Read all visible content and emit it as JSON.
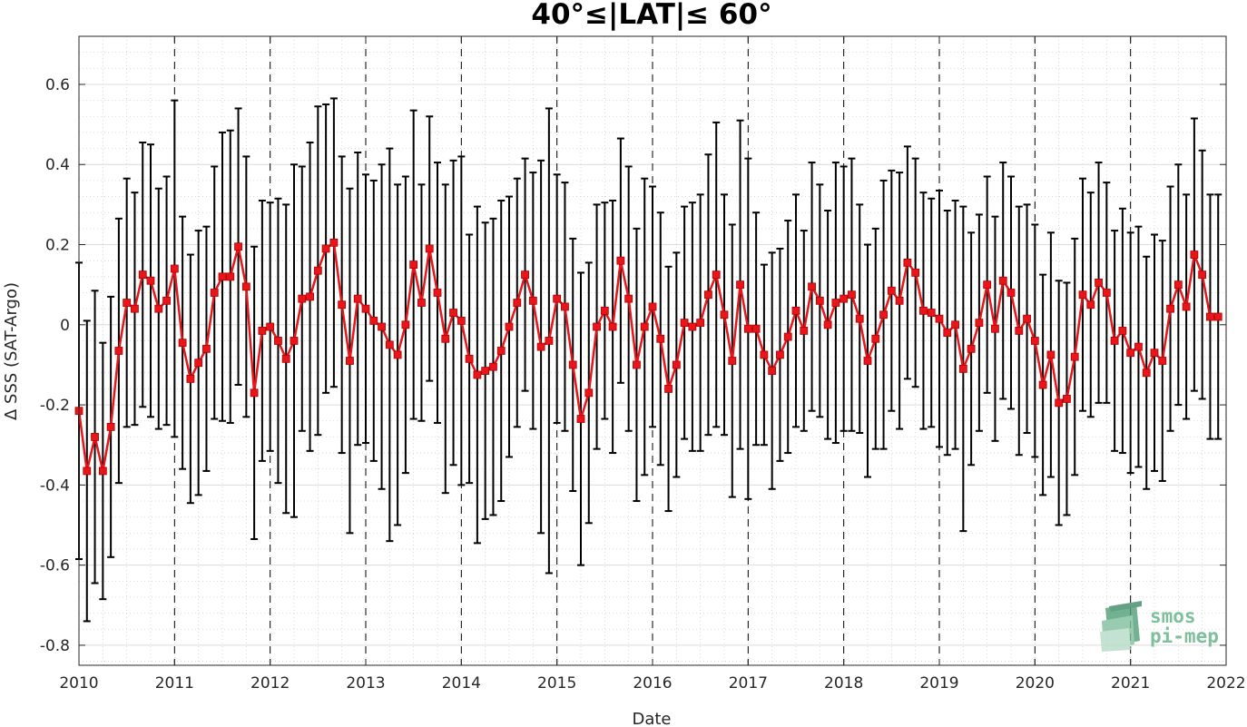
{
  "chart_data": {
    "type": "line",
    "title": "40°≤|LAT|≤ 60°",
    "xlabel": "Date",
    "ylabel": "Δ SSS (SAT-Argo)",
    "xlim": [
      2010,
      2022
    ],
    "ylim": [
      -0.85,
      0.72
    ],
    "x_ticks": [
      "2010",
      "2011",
      "2012",
      "2013",
      "2014",
      "2015",
      "2016",
      "2017",
      "2018",
      "2019",
      "2020",
      "2021",
      "2022"
    ],
    "y_ticks": [
      "-0.8",
      "-0.6",
      "-0.4",
      "-0.2",
      "0",
      "0.2",
      "0.4",
      "0.6"
    ],
    "grid": true,
    "year_boundary_lines": "dashed",
    "series": [
      {
        "x_start": "2010-01",
        "step": "1 month",
        "color": "#e8151b",
        "marker": "square",
        "errorbar_color": "#000000",
        "values": [
          -0.215,
          -0.365,
          -0.28,
          -0.365,
          -0.255,
          -0.065,
          0.055,
          0.04,
          0.125,
          0.11,
          0.04,
          0.06,
          0.14,
          -0.045,
          -0.135,
          -0.095,
          -0.06,
          0.08,
          0.12,
          0.12,
          0.195,
          0.095,
          -0.17,
          -0.015,
          -0.005,
          -0.04,
          -0.085,
          -0.04,
          0.065,
          0.07,
          0.135,
          0.19,
          0.205,
          0.05,
          -0.09,
          0.065,
          0.04,
          0.01,
          -0.005,
          -0.05,
          -0.075,
          0.0,
          0.15,
          0.055,
          0.19,
          0.08,
          -0.035,
          0.03,
          0.01,
          -0.085,
          -0.125,
          -0.115,
          -0.105,
          -0.065,
          -0.005,
          0.055,
          0.125,
          0.06,
          -0.055,
          -0.04,
          0.065,
          0.045,
          -0.1,
          -0.235,
          -0.17,
          -0.005,
          0.035,
          -0.005,
          0.16,
          0.065,
          -0.1,
          -0.005,
          0.045,
          -0.035,
          -0.16,
          -0.1,
          0.005,
          -0.005,
          0.005,
          0.075,
          0.125,
          0.025,
          -0.09,
          0.1,
          -0.01,
          -0.01,
          -0.075,
          -0.115,
          -0.075,
          -0.03,
          0.035,
          -0.015,
          0.095,
          0.06,
          0.0,
          0.055,
          0.065,
          0.075,
          0.015,
          -0.09,
          -0.035,
          0.025,
          0.085,
          0.06,
          0.155,
          0.13,
          0.035,
          0.03,
          0.015,
          -0.02,
          0.0,
          -0.11,
          -0.06,
          0.005,
          0.1,
          -0.01,
          0.11,
          0.08,
          -0.015,
          0.015,
          -0.04,
          -0.15,
          -0.075,
          -0.195,
          -0.185,
          -0.08,
          0.075,
          0.05,
          0.105,
          0.08,
          -0.04,
          -0.015,
          -0.07,
          -0.055,
          -0.12,
          -0.07,
          -0.09,
          0.04,
          0.1,
          0.045,
          0.175,
          0.125,
          0.02,
          0.02
        ],
        "errors": [
          0.37,
          0.375,
          0.365,
          0.32,
          0.325,
          0.33,
          0.31,
          0.29,
          0.33,
          0.34,
          0.3,
          0.31,
          0.42,
          0.315,
          0.31,
          0.33,
          0.305,
          0.315,
          0.36,
          0.365,
          0.345,
          0.325,
          0.365,
          0.325,
          0.31,
          0.355,
          0.385,
          0.44,
          0.33,
          0.385,
          0.41,
          0.36,
          0.36,
          0.37,
          0.43,
          0.365,
          0.335,
          0.35,
          0.405,
          0.49,
          0.425,
          0.37,
          0.385,
          0.295,
          0.33,
          0.325,
          0.385,
          0.38,
          0.41,
          0.31,
          0.42,
          0.37,
          0.37,
          0.375,
          0.325,
          0.31,
          0.29,
          0.32,
          0.465,
          0.58,
          0.31,
          0.31,
          0.315,
          0.365,
          0.325,
          0.305,
          0.27,
          0.315,
          0.305,
          0.33,
          0.34,
          0.37,
          0.3,
          0.315,
          0.305,
          0.28,
          0.29,
          0.31,
          0.32,
          0.35,
          0.38,
          0.3,
          0.34,
          0.41,
          0.425,
          0.29,
          0.225,
          0.295,
          0.265,
          0.29,
          0.29,
          0.25,
          0.31,
          0.29,
          0.285,
          0.35,
          0.33,
          0.34,
          0.285,
          0.29,
          0.275,
          0.335,
          0.3,
          0.32,
          0.29,
          0.285,
          0.295,
          0.285,
          0.32,
          0.305,
          0.31,
          0.405,
          0.29,
          0.27,
          0.27,
          0.28,
          0.295,
          0.29,
          0.31,
          0.285,
          0.29,
          0.275,
          0.305,
          0.305,
          0.29,
          0.295,
          0.29,
          0.28,
          0.3,
          0.275,
          0.275,
          0.305,
          0.3,
          0.3,
          0.29,
          0.295,
          0.3,
          0.305,
          0.3,
          0.28,
          0.34,
          0.31,
          0.305,
          0.305
        ]
      }
    ]
  },
  "logo": {
    "line1": "smos",
    "line2": "pi-mep"
  }
}
